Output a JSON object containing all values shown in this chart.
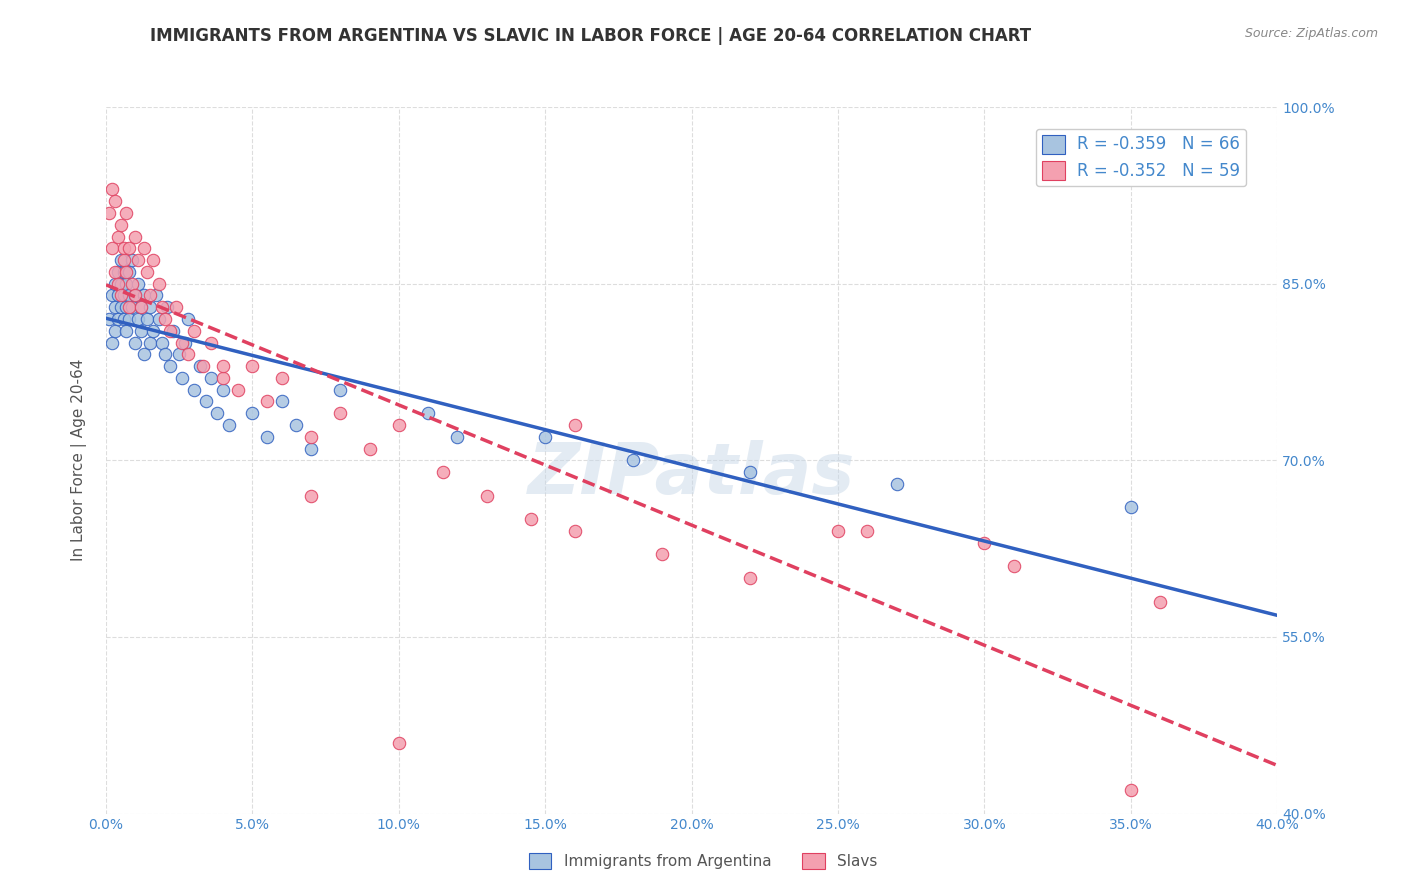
{
  "title": "IMMIGRANTS FROM ARGENTINA VS SLAVIC IN LABOR FORCE | AGE 20-64 CORRELATION CHART",
  "source": "Source: ZipAtlas.com",
  "ylabel": "In Labor Force | Age 20-64",
  "xlabel": "",
  "watermark": "ZIPatlas",
  "legend_label1": "Immigrants from Argentina",
  "legend_label2": "Slavs",
  "R1": -0.359,
  "N1": 66,
  "R2": -0.352,
  "N2": 59,
  "color1": "#a8c4e0",
  "color2": "#f4a0b0",
  "line_color1": "#3060c0",
  "line_color2": "#e04060",
  "xlim": [
    0.0,
    0.4
  ],
  "ylim": [
    0.4,
    1.0
  ],
  "xticks": [
    0.0,
    0.05,
    0.1,
    0.15,
    0.2,
    0.25,
    0.3,
    0.35,
    0.4
  ],
  "yticks": [
    0.4,
    0.55,
    0.7,
    0.85,
    1.0
  ],
  "xticklabels": [
    "0.0%",
    "5.0%",
    "10.0%",
    "15.0%",
    "20.0%",
    "25.0%",
    "30.0%",
    "35.0%",
    "40.0%"
  ],
  "yticklabels": [
    "40.0%",
    "55.0%",
    "70.0%",
    "85.0%",
    "100.0%"
  ],
  "argentina_x": [
    0.001,
    0.002,
    0.002,
    0.003,
    0.003,
    0.003,
    0.004,
    0.004,
    0.004,
    0.005,
    0.005,
    0.005,
    0.006,
    0.006,
    0.006,
    0.007,
    0.007,
    0.007,
    0.008,
    0.008,
    0.008,
    0.009,
    0.009,
    0.01,
    0.01,
    0.011,
    0.011,
    0.012,
    0.012,
    0.013,
    0.013,
    0.014,
    0.015,
    0.015,
    0.016,
    0.017,
    0.018,
    0.019,
    0.02,
    0.021,
    0.022,
    0.023,
    0.025,
    0.026,
    0.027,
    0.028,
    0.03,
    0.032,
    0.034,
    0.036,
    0.038,
    0.04,
    0.042,
    0.05,
    0.055,
    0.06,
    0.065,
    0.07,
    0.08,
    0.11,
    0.12,
    0.15,
    0.18,
    0.22,
    0.27,
    0.35
  ],
  "argentina_y": [
    0.82,
    0.84,
    0.8,
    0.83,
    0.85,
    0.81,
    0.84,
    0.82,
    0.86,
    0.83,
    0.85,
    0.87,
    0.84,
    0.82,
    0.86,
    0.83,
    0.85,
    0.81,
    0.84,
    0.86,
    0.82,
    0.83,
    0.87,
    0.84,
    0.8,
    0.82,
    0.85,
    0.83,
    0.81,
    0.84,
    0.79,
    0.82,
    0.8,
    0.83,
    0.81,
    0.84,
    0.82,
    0.8,
    0.79,
    0.83,
    0.78,
    0.81,
    0.79,
    0.77,
    0.8,
    0.82,
    0.76,
    0.78,
    0.75,
    0.77,
    0.74,
    0.76,
    0.73,
    0.74,
    0.72,
    0.75,
    0.73,
    0.71,
    0.76,
    0.74,
    0.72,
    0.72,
    0.7,
    0.69,
    0.68,
    0.66
  ],
  "slavs_x": [
    0.001,
    0.002,
    0.002,
    0.003,
    0.003,
    0.004,
    0.004,
    0.005,
    0.005,
    0.006,
    0.006,
    0.007,
    0.007,
    0.008,
    0.008,
    0.009,
    0.01,
    0.01,
    0.011,
    0.012,
    0.013,
    0.014,
    0.015,
    0.016,
    0.018,
    0.019,
    0.02,
    0.022,
    0.024,
    0.026,
    0.028,
    0.03,
    0.033,
    0.036,
    0.04,
    0.045,
    0.05,
    0.055,
    0.06,
    0.07,
    0.08,
    0.09,
    0.1,
    0.115,
    0.13,
    0.145,
    0.16,
    0.19,
    0.22,
    0.26,
    0.31,
    0.36,
    0.1,
    0.25,
    0.3,
    0.16,
    0.07,
    0.04,
    0.35
  ],
  "slavs_y": [
    0.91,
    0.93,
    0.88,
    0.92,
    0.86,
    0.89,
    0.85,
    0.9,
    0.84,
    0.88,
    0.87,
    0.91,
    0.86,
    0.83,
    0.88,
    0.85,
    0.89,
    0.84,
    0.87,
    0.83,
    0.88,
    0.86,
    0.84,
    0.87,
    0.85,
    0.83,
    0.82,
    0.81,
    0.83,
    0.8,
    0.79,
    0.81,
    0.78,
    0.8,
    0.77,
    0.76,
    0.78,
    0.75,
    0.77,
    0.72,
    0.74,
    0.71,
    0.73,
    0.69,
    0.67,
    0.65,
    0.64,
    0.62,
    0.6,
    0.64,
    0.61,
    0.58,
    0.46,
    0.64,
    0.63,
    0.73,
    0.67,
    0.78,
    0.42
  ],
  "background_color": "#ffffff",
  "grid_color": "#dddddd",
  "title_color": "#333333",
  "tick_color": "#4488cc",
  "right_tick_color": "#4488cc",
  "watermark_color": "#c8d8e8",
  "watermark_alpha": 0.5
}
